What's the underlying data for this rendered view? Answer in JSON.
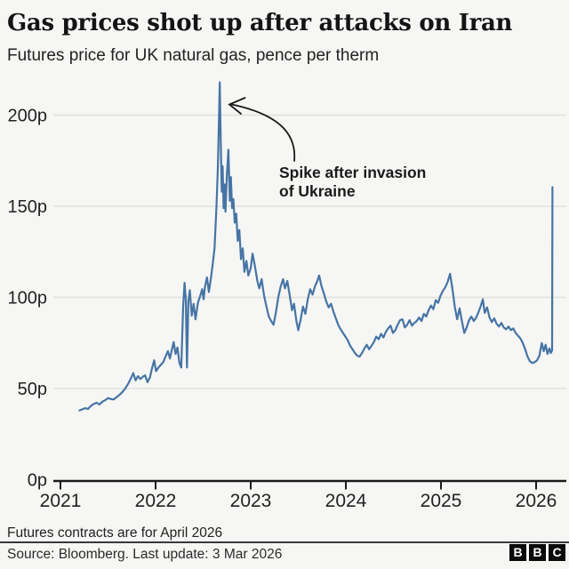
{
  "header": {
    "title": "Gas prices shot up after attacks on Iran",
    "subtitle": "Futures price for UK natural gas, pence per therm"
  },
  "annotation": {
    "line1": "Spike after invasion",
    "line2": "of Ukraine"
  },
  "footer": {
    "note": "Futures contracts are for April 2026",
    "source": "Source: Bloomberg. Last update: 3 Mar 2026",
    "logo_letters": [
      "B",
      "B",
      "C"
    ]
  },
  "colors": {
    "background": "#f6f6f4",
    "line": "#4674a5",
    "grid": "#e0e0dd",
    "axis": "#1a1a1a",
    "text": "#222222"
  },
  "chart_data": {
    "type": "line",
    "title": "Gas prices shot up after attacks on Iran",
    "subtitle": "Futures price for UK natural gas, pence per therm",
    "xlabel": "",
    "ylabel": "pence per therm",
    "x_unit": "decimal_year",
    "xlim": [
      2020.93,
      2026.32
    ],
    "ylim": [
      0,
      220
    ],
    "grid": true,
    "legend_position": "none",
    "y_ticks": [
      {
        "label": "0p",
        "value": 0
      },
      {
        "label": "50p",
        "value": 50
      },
      {
        "label": "100p",
        "value": 100
      },
      {
        "label": "150p",
        "value": 150
      },
      {
        "label": "200p",
        "value": 200
      }
    ],
    "x_ticks": [
      {
        "label": "2021",
        "value": 2021
      },
      {
        "label": "2022",
        "value": 2022
      },
      {
        "label": "2023",
        "value": 2023
      },
      {
        "label": "2024",
        "value": 2024
      },
      {
        "label": "2025",
        "value": 2025
      },
      {
        "label": "2026",
        "value": 2026
      }
    ],
    "annotations": [
      {
        "text": "Spike after invasion of Ukraine",
        "points_to": [
          2022.675,
          218
        ]
      }
    ],
    "series": [
      {
        "name": "UK natural gas futures price (pence per therm)",
        "points": [
          [
            2021.2,
            38
          ],
          [
            2021.23,
            38.6
          ],
          [
            2021.26,
            39.2
          ],
          [
            2021.29,
            38.8
          ],
          [
            2021.32,
            40.5
          ],
          [
            2021.35,
            41.5
          ],
          [
            2021.38,
            42.2
          ],
          [
            2021.41,
            41.2
          ],
          [
            2021.44,
            42.8
          ],
          [
            2021.47,
            43.6
          ],
          [
            2021.5,
            44.8
          ],
          [
            2021.53,
            44.2
          ],
          [
            2021.56,
            44.0
          ],
          [
            2021.59,
            45.2
          ],
          [
            2021.62,
            46.5
          ],
          [
            2021.65,
            48.0
          ],
          [
            2021.68,
            50.0
          ],
          [
            2021.71,
            52.5
          ],
          [
            2021.74,
            55.5
          ],
          [
            2021.765,
            58.5
          ],
          [
            2021.79,
            54.5
          ],
          [
            2021.815,
            56.8
          ],
          [
            2021.84,
            55.2
          ],
          [
            2021.865,
            56.5
          ],
          [
            2021.89,
            57.2
          ],
          [
            2021.915,
            53.5
          ],
          [
            2021.94,
            56.0
          ],
          [
            2021.96,
            60.5
          ],
          [
            2021.985,
            65.5
          ],
          [
            2022.005,
            59.5
          ],
          [
            2022.03,
            61.5
          ],
          [
            2022.055,
            63.0
          ],
          [
            2022.08,
            64.5
          ],
          [
            2022.105,
            67.5
          ],
          [
            2022.13,
            70.5
          ],
          [
            2022.15,
            66.5
          ],
          [
            2022.17,
            71.0
          ],
          [
            2022.19,
            75.5
          ],
          [
            2022.21,
            69.0
          ],
          [
            2022.23,
            72.5
          ],
          [
            2022.25,
            64.0
          ],
          [
            2022.27,
            61.5
          ],
          [
            2022.29,
            95.0
          ],
          [
            2022.305,
            108.0
          ],
          [
            2022.318,
            99.0
          ],
          [
            2022.33,
            61.5
          ],
          [
            2022.345,
            98.0
          ],
          [
            2022.36,
            104.0
          ],
          [
            2022.38,
            90.0
          ],
          [
            2022.4,
            96.5
          ],
          [
            2022.42,
            88.0
          ],
          [
            2022.445,
            97.0
          ],
          [
            2022.47,
            101.0
          ],
          [
            2022.49,
            104.5
          ],
          [
            2022.505,
            99.0
          ],
          [
            2022.52,
            106.0
          ],
          [
            2022.54,
            111.0
          ],
          [
            2022.56,
            103.0
          ],
          [
            2022.58,
            110.0
          ],
          [
            2022.6,
            118.0
          ],
          [
            2022.62,
            127.0
          ],
          [
            2022.64,
            150.0
          ],
          [
            2022.655,
            172.0
          ],
          [
            2022.665,
            196.0
          ],
          [
            2022.675,
            218.0
          ],
          [
            2022.685,
            185.0
          ],
          [
            2022.695,
            158.0
          ],
          [
            2022.705,
            172.0
          ],
          [
            2022.715,
            149.0
          ],
          [
            2022.725,
            162.0
          ],
          [
            2022.735,
            147.0
          ],
          [
            2022.75,
            168.0
          ],
          [
            2022.765,
            181.0
          ],
          [
            2022.78,
            153.0
          ],
          [
            2022.792,
            166.0
          ],
          [
            2022.804,
            149.0
          ],
          [
            2022.818,
            154.0
          ],
          [
            2022.832,
            141.0
          ],
          [
            2022.848,
            146.0
          ],
          [
            2022.864,
            131.0
          ],
          [
            2022.88,
            137.0
          ],
          [
            2022.898,
            121.0
          ],
          [
            2022.916,
            127.0
          ],
          [
            2022.934,
            114.0
          ],
          [
            2022.955,
            120.0
          ],
          [
            2022.975,
            112.0
          ],
          [
            2023.0,
            116.0
          ],
          [
            2023.02,
            124.0
          ],
          [
            2023.045,
            117.0
          ],
          [
            2023.07,
            109.0
          ],
          [
            2023.09,
            105.0
          ],
          [
            2023.115,
            110.0
          ],
          [
            2023.14,
            101.0
          ],
          [
            2023.165,
            95.0
          ],
          [
            2023.19,
            89.5
          ],
          [
            2023.215,
            87.0
          ],
          [
            2023.24,
            85.0
          ],
          [
            2023.265,
            92.0
          ],
          [
            2023.29,
            100.0
          ],
          [
            2023.315,
            106.0
          ],
          [
            2023.34,
            110.0
          ],
          [
            2023.36,
            105.0
          ],
          [
            2023.385,
            109.0
          ],
          [
            2023.41,
            101.0
          ],
          [
            2023.435,
            93.0
          ],
          [
            2023.455,
            96.5
          ],
          [
            2023.48,
            87.0
          ],
          [
            2023.5,
            82.0
          ],
          [
            2023.525,
            88.0
          ],
          [
            2023.55,
            95.0
          ],
          [
            2023.575,
            91.0
          ],
          [
            2023.6,
            99.0
          ],
          [
            2023.625,
            104.5
          ],
          [
            2023.65,
            101.5
          ],
          [
            2023.675,
            106.0
          ],
          [
            2023.7,
            109.0
          ],
          [
            2023.72,
            112.0
          ],
          [
            2023.745,
            106.0
          ],
          [
            2023.77,
            102.0
          ],
          [
            2023.795,
            97.5
          ],
          [
            2023.82,
            94.5
          ],
          [
            2023.845,
            96.5
          ],
          [
            2023.87,
            92.0
          ],
          [
            2023.895,
            88.5
          ],
          [
            2023.92,
            85.0
          ],
          [
            2023.945,
            82.5
          ],
          [
            2023.97,
            80.5
          ],
          [
            2023.995,
            78.5
          ],
          [
            2024.02,
            76.5
          ],
          [
            2024.045,
            73.5
          ],
          [
            2024.07,
            71.5
          ],
          [
            2024.095,
            69.5
          ],
          [
            2024.12,
            68.0
          ],
          [
            2024.145,
            67.5
          ],
          [
            2024.17,
            69.5
          ],
          [
            2024.195,
            72.0
          ],
          [
            2024.22,
            74.0
          ],
          [
            2024.245,
            71.5
          ],
          [
            2024.27,
            73.5
          ],
          [
            2024.295,
            75.5
          ],
          [
            2024.32,
            78.5
          ],
          [
            2024.345,
            77.0
          ],
          [
            2024.37,
            80.0
          ],
          [
            2024.395,
            78.0
          ],
          [
            2024.42,
            81.0
          ],
          [
            2024.445,
            83.0
          ],
          [
            2024.47,
            84.5
          ],
          [
            2024.495,
            80.5
          ],
          [
            2024.52,
            82.0
          ],
          [
            2024.545,
            85.0
          ],
          [
            2024.57,
            87.5
          ],
          [
            2024.595,
            88.0
          ],
          [
            2024.62,
            83.5
          ],
          [
            2024.645,
            85.0
          ],
          [
            2024.67,
            87.5
          ],
          [
            2024.695,
            84.5
          ],
          [
            2024.72,
            86.0
          ],
          [
            2024.745,
            87.0
          ],
          [
            2024.77,
            89.0
          ],
          [
            2024.795,
            87.0
          ],
          [
            2024.82,
            91.0
          ],
          [
            2024.845,
            89.5
          ],
          [
            2024.87,
            93.0
          ],
          [
            2024.895,
            95.5
          ],
          [
            2024.92,
            93.5
          ],
          [
            2024.945,
            98.5
          ],
          [
            2024.97,
            97.0
          ],
          [
            2024.995,
            101.0
          ],
          [
            2025.02,
            103.5
          ],
          [
            2025.045,
            105.5
          ],
          [
            2025.07,
            108.5
          ],
          [
            2025.095,
            113.0
          ],
          [
            2025.12,
            105.0
          ],
          [
            2025.145,
            95.0
          ],
          [
            2025.17,
            88.0
          ],
          [
            2025.195,
            94.0
          ],
          [
            2025.22,
            87.0
          ],
          [
            2025.245,
            80.5
          ],
          [
            2025.27,
            83.5
          ],
          [
            2025.295,
            87.5
          ],
          [
            2025.32,
            89.5
          ],
          [
            2025.345,
            87.0
          ],
          [
            2025.37,
            89.0
          ],
          [
            2025.395,
            92.0
          ],
          [
            2025.42,
            95.5
          ],
          [
            2025.44,
            99.0
          ],
          [
            2025.46,
            91.5
          ],
          [
            2025.485,
            94.5
          ],
          [
            2025.51,
            89.0
          ],
          [
            2025.535,
            86.5
          ],
          [
            2025.56,
            88.5
          ],
          [
            2025.585,
            85.5
          ],
          [
            2025.61,
            84.0
          ],
          [
            2025.635,
            86.0
          ],
          [
            2025.66,
            83.5
          ],
          [
            2025.685,
            82.5
          ],
          [
            2025.71,
            84.0
          ],
          [
            2025.735,
            82.0
          ],
          [
            2025.76,
            83.0
          ],
          [
            2025.785,
            80.5
          ],
          [
            2025.81,
            79.0
          ],
          [
            2025.835,
            77.5
          ],
          [
            2025.86,
            75.0
          ],
          [
            2025.885,
            71.5
          ],
          [
            2025.91,
            67.5
          ],
          [
            2025.935,
            65.0
          ],
          [
            2025.96,
            64.0
          ],
          [
            2025.985,
            64.5
          ],
          [
            2026.01,
            65.5
          ],
          [
            2026.035,
            68.0
          ],
          [
            2026.06,
            75.0
          ],
          [
            2026.08,
            70.5
          ],
          [
            2026.1,
            74.0
          ],
          [
            2026.12,
            69.0
          ],
          [
            2026.14,
            72.0
          ],
          [
            2026.155,
            69.5
          ],
          [
            2026.168,
            71.0
          ],
          [
            2026.172,
            160.5
          ]
        ]
      }
    ]
  }
}
